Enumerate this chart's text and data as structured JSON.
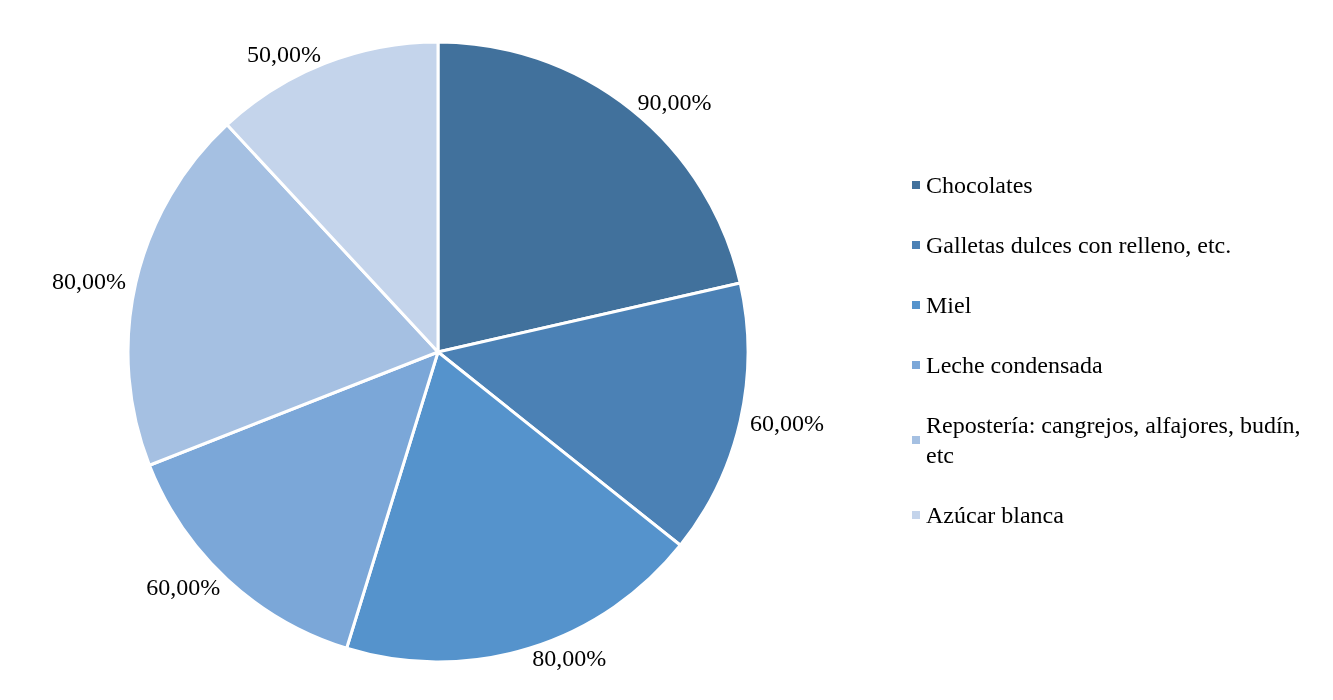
{
  "chart_data": {
    "type": "pie",
    "categories": [
      "Chocolates",
      "Galletas dulces con relleno, etc.",
      "Miel",
      "Leche condensada",
      "Repostería: cangrejos, alfajores, budín,etc",
      "Azúcar blanca"
    ],
    "values": [
      90,
      60,
      80,
      60,
      80,
      50
    ],
    "value_labels": [
      "90,00%",
      "60,00%",
      "80,00%",
      "60,00%",
      "80,00%",
      "50,00%"
    ],
    "colors": [
      "#41719c",
      "#4b81b5",
      "#5593cc",
      "#7ba7d8",
      "#a5c0e2",
      "#c4d4eb"
    ],
    "legend": "right"
  }
}
